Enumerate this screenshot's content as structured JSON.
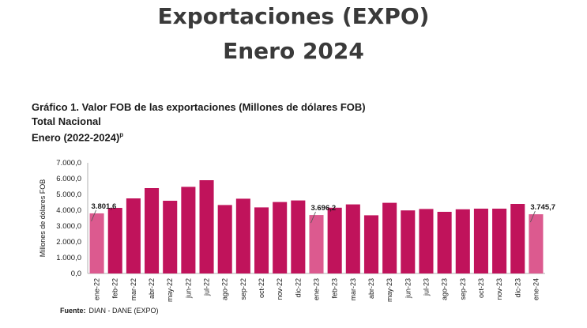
{
  "header": {
    "title_line1": "Exportaciones (EXPO)",
    "title_line2": "Enero 2024"
  },
  "chart_header": {
    "caption": "Gráfico 1. Valor FOB de las exportaciones (Millones de dólares FOB)",
    "subtitle": "Total Nacional",
    "period": "Enero (2022-2024)",
    "period_mark": "p"
  },
  "source": {
    "label": "Fuente:",
    "text": "DIAN - DANE (EXPO)"
  },
  "colors": {
    "bar_default": "#c0135b",
    "bar_highlight": "#dc5a8f",
    "axis": "#b0b0b0"
  },
  "chart_data": {
    "type": "bar",
    "ylabel": "Millones de dólares FOB",
    "ylim": [
      0,
      7000
    ],
    "yticks": [
      "0,0",
      "1.000,0",
      "2.000,0",
      "3.000,0",
      "4.000,0",
      "5.000,0",
      "6.000,0",
      "7.000,0"
    ],
    "grid": false,
    "categories": [
      "ene-22",
      "feb-22",
      "mar-22",
      "abr-22",
      "may-22",
      "jun-22",
      "jul-22",
      "ago-22",
      "sep-22",
      "oct-22",
      "nov-22",
      "dic-22",
      "ene-23",
      "feb-23",
      "mar-23",
      "abr-23",
      "may-23",
      "jun-23",
      "jul-23",
      "ago-23",
      "sep-23",
      "oct-23",
      "nov-23",
      "dic-23",
      "ene-24"
    ],
    "values": [
      3801.6,
      4150,
      4750,
      5400,
      4600,
      5480,
      5900,
      4330,
      4730,
      4180,
      4520,
      4620,
      3696.2,
      4160,
      4370,
      3680,
      4470,
      3990,
      4080,
      3900,
      4060,
      4100,
      4100,
      4400,
      3745.7
    ],
    "highlighted": [
      "ene-22",
      "ene-23",
      "ene-24"
    ],
    "data_labels": [
      {
        "category": "ene-22",
        "text": "3.801,6"
      },
      {
        "category": "ene-23",
        "text": "3.696,2"
      },
      {
        "category": "ene-24",
        "text": "3.745,7"
      }
    ]
  }
}
